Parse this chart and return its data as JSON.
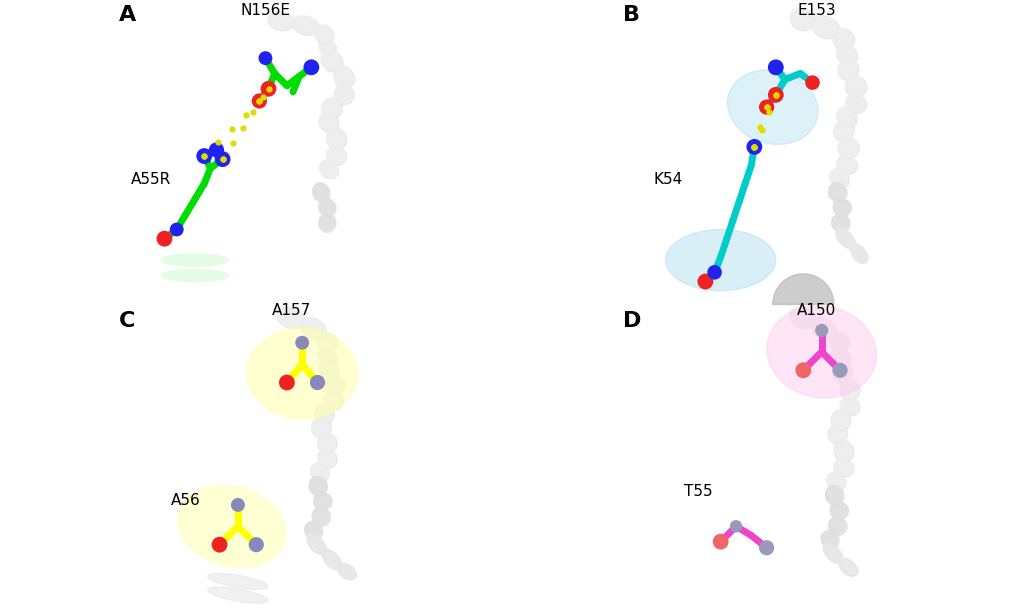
{
  "background_color": "#ffffff",
  "panels": {
    "A": {
      "label": "A",
      "r1_label": "A55R",
      "r2_label": "N156E",
      "stick_color": "#00dd00",
      "n_color": "#2222ee",
      "o_color": "#ee2222",
      "has_salt_bridge": true,
      "sb_color": "#dddd00"
    },
    "B": {
      "label": "B",
      "r1_label": "K54",
      "r2_label": "E153",
      "stick_color": "#00cccc",
      "n_color": "#2222ee",
      "o_color": "#ee2222",
      "has_salt_bridge": true,
      "sb_color": "#dddd00"
    },
    "C": {
      "label": "C",
      "r1_label": "A56",
      "r2_label": "A157",
      "stick_color": "#ffff00",
      "n_color": "#8888bb",
      "o_color": "#ee2222",
      "has_salt_bridge": false,
      "sb_color": null
    },
    "D": {
      "label": "D",
      "r1_label": "T55",
      "r2_label": "A150",
      "stick_color": "#ee44cc",
      "n_color": "#9999bb",
      "o_color": "#ee6666",
      "has_salt_bridge": false,
      "sb_color": null
    }
  },
  "helix_color": "#eeeeee",
  "helix_edge_color": "#cccccc",
  "helix_shadow": "#d8d8d8"
}
